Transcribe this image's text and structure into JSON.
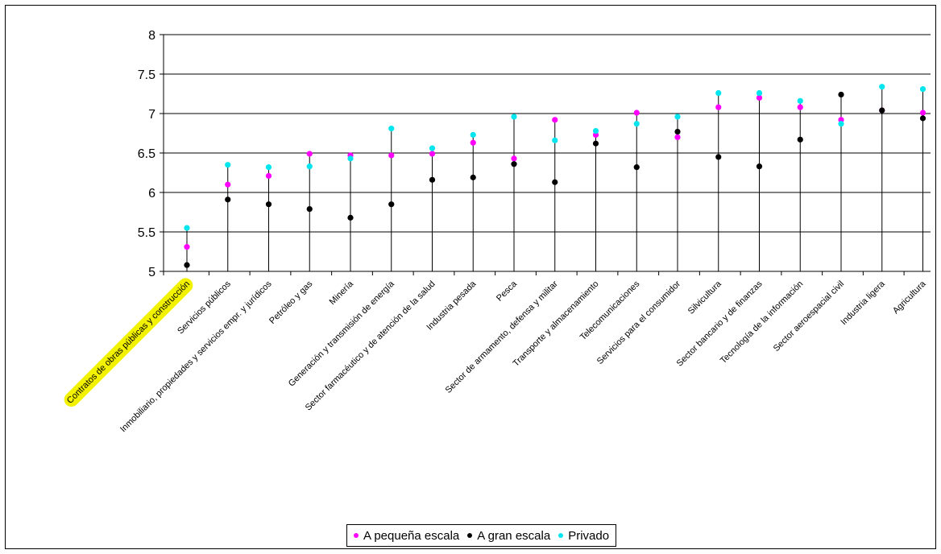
{
  "chart_data": {
    "type": "scatter",
    "title": "",
    "xlabel": "",
    "ylabel": "",
    "ylim": [
      5,
      8
    ],
    "yticks": [
      "5",
      "5.5",
      "6",
      "6.5",
      "7",
      "7.5",
      "8"
    ],
    "grid": "horizontal",
    "legend_position": "bottom",
    "categories": [
      "Contratos de obras públicas y construcción",
      "Servicios públicos",
      "Inmobiliario, propiedades y servicios empr. y jurídicos",
      "Petróleo y gas",
      "Minería",
      "Generación y transmisión de energía",
      "Sector farmacéutico y de atención de la salud",
      "Industria pesada",
      "Pesca",
      "Sector de armamento, defensa y militar",
      "Transporte y almacenamiento",
      "Telecomunicaciones",
      "Servicios para el consumidor",
      "Silvicultura",
      "Sector bancario y de finanzas",
      "Tecnología de la información",
      "Sector aeroespacial civil",
      "Industria ligera",
      "Agricultura"
    ],
    "series": [
      {
        "name": "A pequeña escala",
        "color": "#ff00ff",
        "values": [
          5.31,
          6.1,
          6.21,
          6.49,
          6.47,
          6.47,
          6.49,
          6.63,
          6.43,
          6.92,
          6.73,
          7.01,
          6.7,
          7.08,
          7.2,
          7.08,
          6.92,
          7.04,
          7.01
        ]
      },
      {
        "name": "A gran escala",
        "color": "#000000",
        "values": [
          5.08,
          5.91,
          5.85,
          5.79,
          5.68,
          5.85,
          6.16,
          6.19,
          6.36,
          6.13,
          6.62,
          6.32,
          6.77,
          6.45,
          6.33,
          6.67,
          7.24,
          7.04,
          6.94
        ]
      },
      {
        "name": "Privado",
        "color": "#00e5ee",
        "values": [
          5.55,
          6.35,
          6.32,
          6.33,
          6.43,
          6.81,
          6.56,
          6.73,
          6.96,
          6.66,
          6.78,
          6.87,
          6.96,
          7.26,
          7.26,
          7.16,
          6.87,
          7.34,
          7.31
        ]
      }
    ],
    "highlighted_category": "Contratos de obras públicas y construcción",
    "highlight_color": "#f2f200"
  }
}
